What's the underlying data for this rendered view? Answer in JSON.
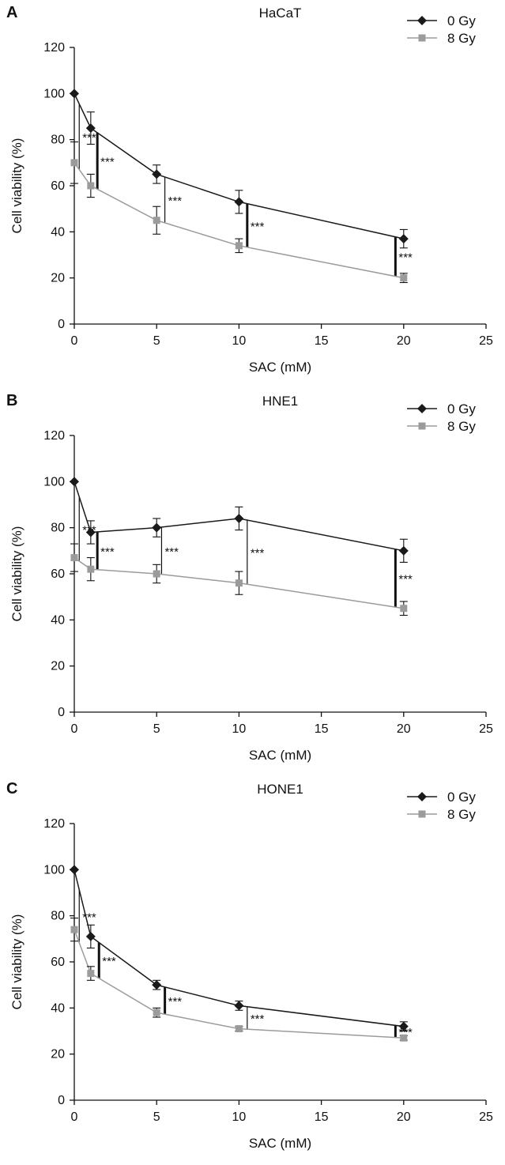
{
  "chart_data": [
    {
      "panel": "A",
      "type": "line",
      "title": "HaCaT",
      "xlabel": "SAC (mM)",
      "ylabel": "Cell viability (%)",
      "xlim": [
        0,
        25
      ],
      "ylim": [
        0,
        120
      ],
      "x_ticks": [
        0,
        5,
        10,
        15,
        20,
        25
      ],
      "y_ticks": [
        0,
        20,
        40,
        60,
        80,
        100,
        120
      ],
      "legend_position": "top-right",
      "grid": false,
      "x": [
        0,
        1,
        5,
        10,
        20
      ],
      "series": [
        {
          "name": "0 Gy",
          "marker": "diamond",
          "color": "#1a1a1a",
          "values": [
            100,
            85,
            65,
            53,
            37
          ],
          "err": [
            0,
            7,
            4,
            5,
            4
          ]
        },
        {
          "name": "8 Gy",
          "marker": "square",
          "color": "#9b9b9b",
          "values": [
            70,
            60,
            45,
            34,
            20
          ],
          "err": [
            9,
            5,
            6,
            3,
            2
          ]
        }
      ],
      "significance": [
        {
          "x": 0.3,
          "label": "***",
          "bar": "thin"
        },
        {
          "x": 1.4,
          "label": "***",
          "bar": "thick"
        },
        {
          "x": 5.5,
          "label": "***",
          "bar": "thin"
        },
        {
          "x": 10.5,
          "label": "***",
          "bar": "thick"
        },
        {
          "x": 19.5,
          "label": "***",
          "bar": "thick"
        }
      ]
    },
    {
      "panel": "B",
      "type": "line",
      "title": "HNE1",
      "xlabel": "SAC (mM)",
      "ylabel": "Cell viability (%)",
      "xlim": [
        0,
        25
      ],
      "ylim": [
        0,
        120
      ],
      "x_ticks": [
        0,
        5,
        10,
        15,
        20,
        25
      ],
      "y_ticks": [
        0,
        20,
        40,
        60,
        80,
        100,
        120
      ],
      "legend_position": "top-right",
      "grid": false,
      "x": [
        0,
        1,
        5,
        10,
        20
      ],
      "series": [
        {
          "name": "0 Gy",
          "marker": "diamond",
          "color": "#1a1a1a",
          "values": [
            100,
            78,
            80,
            84,
            70
          ],
          "err": [
            0,
            5,
            4,
            5,
            5
          ]
        },
        {
          "name": "8 Gy",
          "marker": "square",
          "color": "#9b9b9b",
          "values": [
            67,
            62,
            60,
            56,
            45
          ],
          "err": [
            6,
            5,
            4,
            5,
            3
          ]
        }
      ],
      "significance": [
        {
          "x": 0.3,
          "label": "***",
          "bar": "thin"
        },
        {
          "x": 1.4,
          "label": "***",
          "bar": "thick"
        },
        {
          "x": 5.3,
          "label": "***",
          "bar": "thin"
        },
        {
          "x": 10.5,
          "label": "***",
          "bar": "thin"
        },
        {
          "x": 19.5,
          "label": "***",
          "bar": "thick"
        }
      ]
    },
    {
      "panel": "C",
      "type": "line",
      "title": "HONE1",
      "xlabel": "SAC (mM)",
      "ylabel": "Cell viability (%)",
      "xlim": [
        0,
        25
      ],
      "ylim": [
        0,
        120
      ],
      "x_ticks": [
        0,
        5,
        10,
        15,
        20,
        25
      ],
      "y_ticks": [
        0,
        20,
        40,
        60,
        80,
        100,
        120
      ],
      "legend_position": "top-right",
      "grid": false,
      "x": [
        0,
        1,
        5,
        10,
        20
      ],
      "series": [
        {
          "name": "0 Gy",
          "marker": "diamond",
          "color": "#1a1a1a",
          "values": [
            100,
            71,
            50,
            41,
            32
          ],
          "err": [
            0,
            5,
            2,
            2,
            2
          ]
        },
        {
          "name": "8 Gy",
          "marker": "square",
          "color": "#9b9b9b",
          "values": [
            74,
            55,
            38,
            31,
            27
          ],
          "err": [
            5,
            3,
            2,
            1,
            1
          ]
        }
      ],
      "significance": [
        {
          "x": 0.3,
          "label": "***",
          "bar": "thin"
        },
        {
          "x": 1.5,
          "label": "***",
          "bar": "thick"
        },
        {
          "x": 5.5,
          "label": "***",
          "bar": "thick"
        },
        {
          "x": 10.5,
          "label": "***",
          "bar": "thin"
        },
        {
          "x": 19.5,
          "label": "***",
          "bar": "thick"
        }
      ]
    }
  ]
}
